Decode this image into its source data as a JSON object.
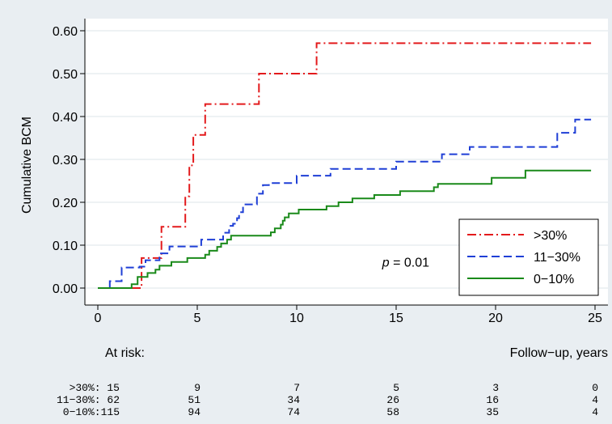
{
  "chart_data": {
    "type": "line",
    "ylabel": "Cumulative BCM",
    "xlabel": "Follow−up, years",
    "xlim": [
      0,
      25
    ],
    "ylim": [
      0,
      0.6
    ],
    "x_ticks": [
      "0",
      "5",
      "10",
      "15",
      "20",
      "25"
    ],
    "y_ticks": [
      "0.00",
      "0.10",
      "0.20",
      "0.30",
      "0.40",
      "0.50",
      "0.60"
    ],
    "x_tick_values": [
      0,
      5,
      10,
      15,
      20,
      25
    ],
    "y_tick_values": [
      0,
      0.1,
      0.2,
      0.3,
      0.4,
      0.5,
      0.6
    ],
    "grid": "horizontal",
    "legend_position": "bottom-right",
    "annotation": {
      "italic": "p",
      "rest": " = 0.01",
      "x": 14.3,
      "y": 0.05
    },
    "series": [
      {
        "name": ">30%",
        "color": "#e31a1c",
        "dash": "dashdot",
        "points": [
          [
            0,
            0
          ],
          [
            2.2,
            0
          ],
          [
            2.2,
            0.07
          ],
          [
            2.7,
            0.07
          ],
          [
            2.7,
            0.07
          ],
          [
            3.2,
            0.07
          ],
          [
            3.2,
            0.143
          ],
          [
            4.4,
            0.143
          ],
          [
            4.4,
            0.214
          ],
          [
            4.6,
            0.214
          ],
          [
            4.6,
            0.286
          ],
          [
            4.8,
            0.286
          ],
          [
            4.8,
            0.357
          ],
          [
            5.4,
            0.357
          ],
          [
            5.4,
            0.429
          ],
          [
            8.1,
            0.429
          ],
          [
            8.1,
            0.5
          ],
          [
            11.0,
            0.5
          ],
          [
            11.0,
            0.571
          ],
          [
            24.8,
            0.571
          ]
        ]
      },
      {
        "name": "11−30%",
        "color": "#1f3fd6",
        "dash": "dashed",
        "points": [
          [
            0,
            0
          ],
          [
            0.6,
            0
          ],
          [
            0.6,
            0.016
          ],
          [
            1.2,
            0.016
          ],
          [
            1.2,
            0.048
          ],
          [
            2.1,
            0.048
          ],
          [
            2.1,
            0.05
          ],
          [
            2.4,
            0.05
          ],
          [
            2.4,
            0.065
          ],
          [
            3.1,
            0.065
          ],
          [
            3.1,
            0.081
          ],
          [
            3.6,
            0.081
          ],
          [
            3.6,
            0.097
          ],
          [
            5.2,
            0.097
          ],
          [
            5.2,
            0.113
          ],
          [
            6.3,
            0.113
          ],
          [
            6.3,
            0.129
          ],
          [
            6.6,
            0.129
          ],
          [
            6.6,
            0.145
          ],
          [
            6.8,
            0.145
          ],
          [
            6.8,
            0.15
          ],
          [
            7.0,
            0.15
          ],
          [
            7.0,
            0.163
          ],
          [
            7.1,
            0.163
          ],
          [
            7.1,
            0.177
          ],
          [
            7.3,
            0.177
          ],
          [
            7.3,
            0.195
          ],
          [
            8.0,
            0.195
          ],
          [
            8.0,
            0.22
          ],
          [
            8.3,
            0.22
          ],
          [
            8.3,
            0.24
          ],
          [
            8.6,
            0.24
          ],
          [
            8.6,
            0.245
          ],
          [
            10.0,
            0.245
          ],
          [
            10.0,
            0.262
          ],
          [
            11.7,
            0.262
          ],
          [
            11.7,
            0.278
          ],
          [
            15.0,
            0.278
          ],
          [
            15.0,
            0.295
          ],
          [
            17.3,
            0.295
          ],
          [
            17.3,
            0.312
          ],
          [
            18.7,
            0.312
          ],
          [
            18.7,
            0.329
          ],
          [
            23.1,
            0.329
          ],
          [
            23.1,
            0.362
          ],
          [
            24.0,
            0.362
          ],
          [
            24.0,
            0.393
          ],
          [
            24.8,
            0.393
          ]
        ]
      },
      {
        "name": "0−10%",
        "color": "#1a8a1a",
        "dash": "solid",
        "points": [
          [
            0,
            0
          ],
          [
            1.7,
            0
          ],
          [
            1.7,
            0.009
          ],
          [
            2.0,
            0.009
          ],
          [
            2.0,
            0.026
          ],
          [
            2.5,
            0.026
          ],
          [
            2.5,
            0.035
          ],
          [
            2.9,
            0.035
          ],
          [
            2.9,
            0.043
          ],
          [
            3.1,
            0.043
          ],
          [
            3.1,
            0.052
          ],
          [
            3.7,
            0.052
          ],
          [
            3.7,
            0.061
          ],
          [
            4.5,
            0.061
          ],
          [
            4.5,
            0.07
          ],
          [
            5.4,
            0.07
          ],
          [
            5.4,
            0.078
          ],
          [
            5.6,
            0.078
          ],
          [
            5.6,
            0.087
          ],
          [
            6.0,
            0.087
          ],
          [
            6.0,
            0.096
          ],
          [
            6.2,
            0.096
          ],
          [
            6.2,
            0.104
          ],
          [
            6.5,
            0.104
          ],
          [
            6.5,
            0.113
          ],
          [
            6.7,
            0.113
          ],
          [
            6.7,
            0.122
          ],
          [
            8.7,
            0.122
          ],
          [
            8.7,
            0.13
          ],
          [
            8.9,
            0.13
          ],
          [
            8.9,
            0.139
          ],
          [
            9.2,
            0.139
          ],
          [
            9.2,
            0.148
          ],
          [
            9.3,
            0.148
          ],
          [
            9.3,
            0.157
          ],
          [
            9.4,
            0.157
          ],
          [
            9.4,
            0.165
          ],
          [
            9.6,
            0.165
          ],
          [
            9.6,
            0.174
          ],
          [
            10.1,
            0.174
          ],
          [
            10.1,
            0.183
          ],
          [
            11.5,
            0.183
          ],
          [
            11.5,
            0.191
          ],
          [
            12.1,
            0.191
          ],
          [
            12.1,
            0.2
          ],
          [
            12.8,
            0.2
          ],
          [
            12.8,
            0.209
          ],
          [
            13.9,
            0.209
          ],
          [
            13.9,
            0.217
          ],
          [
            15.2,
            0.217
          ],
          [
            15.2,
            0.226
          ],
          [
            16.9,
            0.226
          ],
          [
            16.9,
            0.235
          ],
          [
            17.1,
            0.235
          ],
          [
            17.1,
            0.243
          ],
          [
            19.8,
            0.243
          ],
          [
            19.8,
            0.257
          ],
          [
            21.5,
            0.257
          ],
          [
            21.5,
            0.274
          ],
          [
            24.8,
            0.274
          ]
        ]
      }
    ]
  },
  "at_risk": {
    "label": "At risk:",
    "rows": [
      {
        "label": ">30%: 15",
        "values": [
          "9",
          "7",
          "5",
          "3",
          "0"
        ]
      },
      {
        "label": "11−30%: 62",
        "values": [
          "51",
          "34",
          "26",
          "16",
          "4"
        ]
      },
      {
        "label": "0−10%:115",
        "values": [
          "94",
          "74",
          "58",
          "35",
          "4"
        ]
      }
    ]
  }
}
